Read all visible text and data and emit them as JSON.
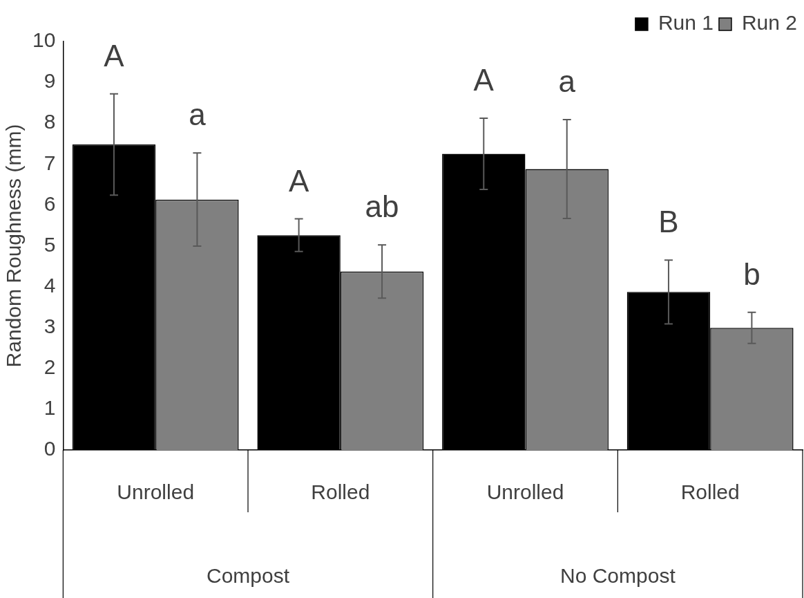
{
  "chart_data": {
    "type": "bar",
    "ylabel": "Random Roughness (mm)",
    "categories": [
      "Unrolled",
      "Rolled",
      "Unrolled",
      "Rolled"
    ],
    "series": [
      {
        "name": "Run 1",
        "color": "#000000",
        "values": [
          7.48,
          5.26,
          7.25,
          3.87
        ],
        "errors": [
          1.24,
          0.4,
          0.87,
          0.78
        ],
        "value_labels": [
          "A",
          "A",
          "A",
          "B"
        ]
      },
      {
        "name": "Run 2",
        "color": "#808080",
        "values": [
          6.13,
          4.37,
          6.88,
          2.99
        ],
        "errors": [
          1.14,
          0.65,
          1.21,
          0.38
        ],
        "value_labels": [
          "a",
          "ab",
          "a",
          "b"
        ]
      }
    ],
    "annotations": [
      "Compost",
      "No Compost"
    ],
    "ylim": [
      0,
      10
    ],
    "yticks": [
      0,
      1,
      2,
      3,
      4,
      5,
      6,
      7,
      8,
      9,
      10
    ],
    "grid": false,
    "legend": "top right"
  }
}
